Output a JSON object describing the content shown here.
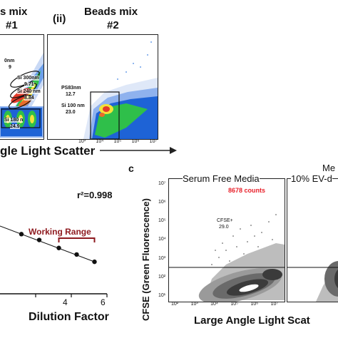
{
  "panel_a": {
    "title_left_line1": "s mix",
    "title_left_line2": "#1",
    "panel_ii_label": "(ii)",
    "title_right_line1": "Beads mix",
    "title_right_line2": "#2",
    "x_axis_label": "gle Light Scatter",
    "left_gates": [
      {
        "label": "0nm",
        "value": "9"
      },
      {
        "label": "Si 300nm",
        "value": "9.71"
      },
      {
        "label": "Si 240 nm",
        "value": "8.84"
      },
      {
        "label": "Si 180 n",
        "value": "24.9"
      }
    ],
    "right_gates": [
      {
        "label": "PS83nm",
        "value": "12.7"
      },
      {
        "label": "Si 100 nm",
        "value": "23.0"
      }
    ],
    "x_tick_labels": [
      "10³",
      "10⁴",
      "10⁵",
      "10⁶",
      "10⁷"
    ]
  },
  "panel_b": {
    "r2_label": "r²=0.998",
    "working_range_label": "Working Range",
    "x_axis_label": "Dilution Factor",
    "x_tick_labels": [
      "4",
      "6"
    ],
    "chart_data": {
      "type": "line",
      "x": [
        1.2,
        2.2,
        3.3,
        4.3,
        5.3
      ],
      "y": [
        0.82,
        0.74,
        0.63,
        0.54,
        0.44
      ],
      "xlim": [
        0,
        6
      ]
    }
  },
  "panel_c": {
    "label": "c",
    "y_axis_label": "CFSE (Green Fluorescence)",
    "x_axis_label": "Large Angle Light Scat",
    "plot1_title": "Serum Free Media",
    "plot2_title_line1": "Me",
    "plot2_title_line2": "10% EV-d",
    "counts": "8678 counts",
    "gate_label": "CFSE+",
    "gate_value": "29.0",
    "y_tick_labels": [
      "10⁷",
      "10⁶",
      "10⁵",
      "10⁴",
      "10³",
      "10²",
      "10¹"
    ],
    "x_tick_labels": [
      "10²",
      "10³",
      "10⁴",
      "10⁵",
      "10⁶",
      "10⁷"
    ],
    "counts_color": "#e8202a"
  }
}
